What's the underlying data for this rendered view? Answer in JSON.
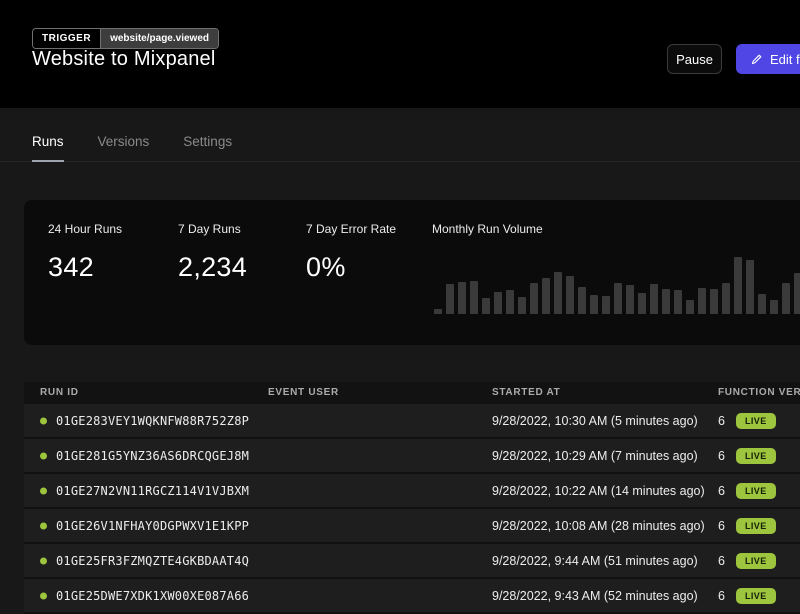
{
  "header": {
    "trigger_badge": "TRIGGER",
    "trigger_event": "website/page.viewed",
    "title": "Website to Mixpanel",
    "buttons": {
      "pause": "Pause",
      "edit": "Edit function"
    }
  },
  "tabs": {
    "runs": "Runs",
    "versions": "Versions",
    "settings": "Settings",
    "active": "Runs"
  },
  "stats": {
    "items": [
      {
        "label": "24 Hour Runs",
        "value": "342"
      },
      {
        "label": "7 Day Runs",
        "value": "2,234"
      },
      {
        "label": "7 Day Error Rate",
        "value": "0%"
      }
    ]
  },
  "chart_data": {
    "type": "bar",
    "title": "Monthly Run Volume",
    "values": [
      9,
      50,
      53,
      55,
      27,
      36,
      40,
      28,
      52,
      60,
      70,
      64,
      45,
      32,
      30,
      52,
      48,
      35,
      50,
      42,
      40,
      24,
      43,
      42,
      51,
      95,
      90,
      33,
      23,
      52,
      68
    ],
    "value_scale": "relative bar height percent (sparkline, no axes or tick labels shown)",
    "bar_color": "#3a3a3a",
    "axes": "none",
    "legend": "none"
  },
  "table": {
    "columns": [
      "RUN ID",
      "EVENT USER",
      "STARTED AT",
      "FUNCTION VERSION"
    ],
    "rows": [
      {
        "run_id": "01GE283VEY1WQKNFW88R752Z8P",
        "event_user": "",
        "started_at": "9/28/2022, 10:30 AM (5 minutes ago)",
        "version": "6",
        "status": "LIVE"
      },
      {
        "run_id": "01GE281G5YNZ36AS6DRCQGEJ8M",
        "event_user": "",
        "started_at": "9/28/2022, 10:29 AM (7 minutes ago)",
        "version": "6",
        "status": "LIVE"
      },
      {
        "run_id": "01GE27N2VN11RGCZ114V1VJBXM",
        "event_user": "",
        "started_at": "9/28/2022, 10:22 AM (14 minutes ago)",
        "version": "6",
        "status": "LIVE"
      },
      {
        "run_id": "01GE26V1NFHAY0DGPWXV1E1KPP",
        "event_user": "",
        "started_at": "9/28/2022, 10:08 AM (28 minutes ago)",
        "version": "6",
        "status": "LIVE"
      },
      {
        "run_id": "01GE25FR3FZMQZTE4GKBDAAT4Q",
        "event_user": "",
        "started_at": "9/28/2022, 9:44 AM (51 minutes ago)",
        "version": "6",
        "status": "LIVE"
      },
      {
        "run_id": "01GE25DWE7XDK1XW00XE087A66",
        "event_user": "",
        "started_at": "9/28/2022, 9:43 AM (52 minutes ago)",
        "version": "6",
        "status": "LIVE"
      }
    ]
  },
  "colors": {
    "accent": "#4f46e5",
    "live_green": "#9dc53d",
    "header_bg": "#000000",
    "page_bg": "#181818",
    "card_bg": "#0b0b0b",
    "bar_gray": "#3a3a3a"
  }
}
